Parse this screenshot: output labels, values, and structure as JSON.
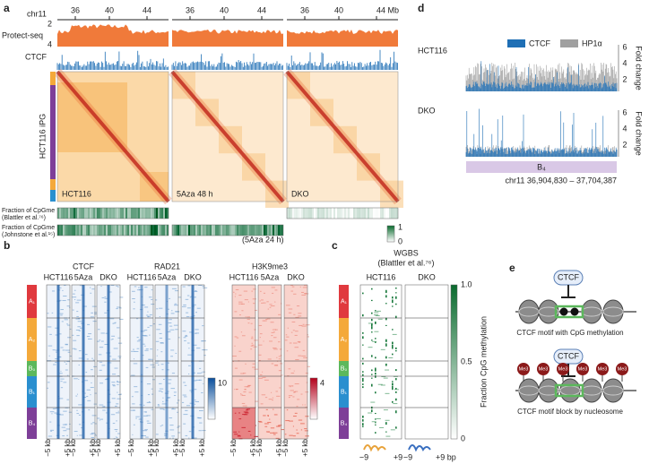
{
  "panel_a": {
    "label": "a",
    "chromosome": "chr11",
    "axis_ticks": [
      [
        "36",
        "40",
        "44"
      ],
      [
        "36",
        "40",
        "44"
      ],
      [
        "36",
        "40",
        "44 Mb"
      ]
    ],
    "protect_seq": {
      "name": "Protect-seq",
      "ticks": [
        "2",
        "4"
      ]
    },
    "ctcf_track": "CTCF",
    "heatmap_label": "HCT116 iPG",
    "samples": [
      "HCT116",
      "5Aza 48 h",
      "DKO"
    ],
    "fraction_rows": [
      {
        "title": "Fraction of CpGme",
        "source": "(Blattler et al.⁷⁶)"
      },
      {
        "title": "Fraction of CpGme",
        "source": "(Johnstone et al.¹⁵)"
      }
    ],
    "treatment_note": "(5Aza 24 h)",
    "colorbar_ticks": [
      "1",
      "0"
    ]
  },
  "panel_b": {
    "label": "b",
    "groups": [
      {
        "name": "CTCF",
        "columns": [
          "HCT116",
          "5Aza",
          "DKO"
        ]
      },
      {
        "name": "RAD21",
        "columns": [
          "HCT116",
          "5Aza",
          "DKO"
        ]
      },
      {
        "name": "H3K9me3",
        "columns": [
          "HCT116",
          "5Aza",
          "DKO"
        ]
      }
    ],
    "colorbar_ticks": [
      "10",
      "4"
    ],
    "clusters": [
      "A₁",
      "A₂",
      "B₀",
      "B₁",
      "B₄"
    ],
    "x_ranges": [
      [
        "−5 kb",
        "+5 kb"
      ],
      [
        "−5 kb",
        "+5 kb"
      ],
      [
        "−5 kb",
        "+5 kb"
      ],
      [
        "−5 kb",
        "+5 kb"
      ],
      [
        "−5 kb",
        "+5 kb"
      ],
      [
        "−5 kb",
        "+5 kb"
      ],
      [
        "−5 kb",
        "+5 kb"
      ],
      [
        "−5 kb",
        "+5 kb"
      ],
      [
        "−5 kb",
        "+5 kb"
      ]
    ]
  },
  "panel_c": {
    "label": "c",
    "title": "WGBS",
    "source": "(Blattler et al.⁷⁶)",
    "columns": [
      "HCT116",
      "DKO"
    ],
    "clusters": [
      "A₁",
      "A₂",
      "B₀",
      "B₁",
      "B₄"
    ],
    "colorbar_title": "Fraction CpG methylation",
    "colorbar_ticks": [
      "1.0",
      "0.5",
      "0"
    ],
    "x_ticks": [
      "−9",
      "+9",
      "−9",
      "+9 bp"
    ]
  },
  "panel_d": {
    "label": "d",
    "rows": [
      {
        "name": "HCT116",
        "ticks": [
          "2",
          "4",
          "6"
        ],
        "axis_title": "Fold change"
      },
      {
        "name": "DKO",
        "ticks": [
          "2",
          "4",
          "6"
        ],
        "axis_title": "Fold change"
      }
    ],
    "legend": [
      "CTCF",
      "HP1α"
    ],
    "domain": "B₄",
    "coordinates": "chr11 36,904,830 – 37,704,387"
  },
  "panel_e": {
    "label": "e",
    "schemes": [
      {
        "protein": "CTCF",
        "caption": "CTCF motif with CpG methylation"
      },
      {
        "protein": "CTCF",
        "caption": "CTCF motif block by nucleosome",
        "marks": [
          "Me3",
          "Me3",
          "Me3",
          "Me3",
          "Me3",
          "Me3"
        ]
      }
    ]
  }
}
